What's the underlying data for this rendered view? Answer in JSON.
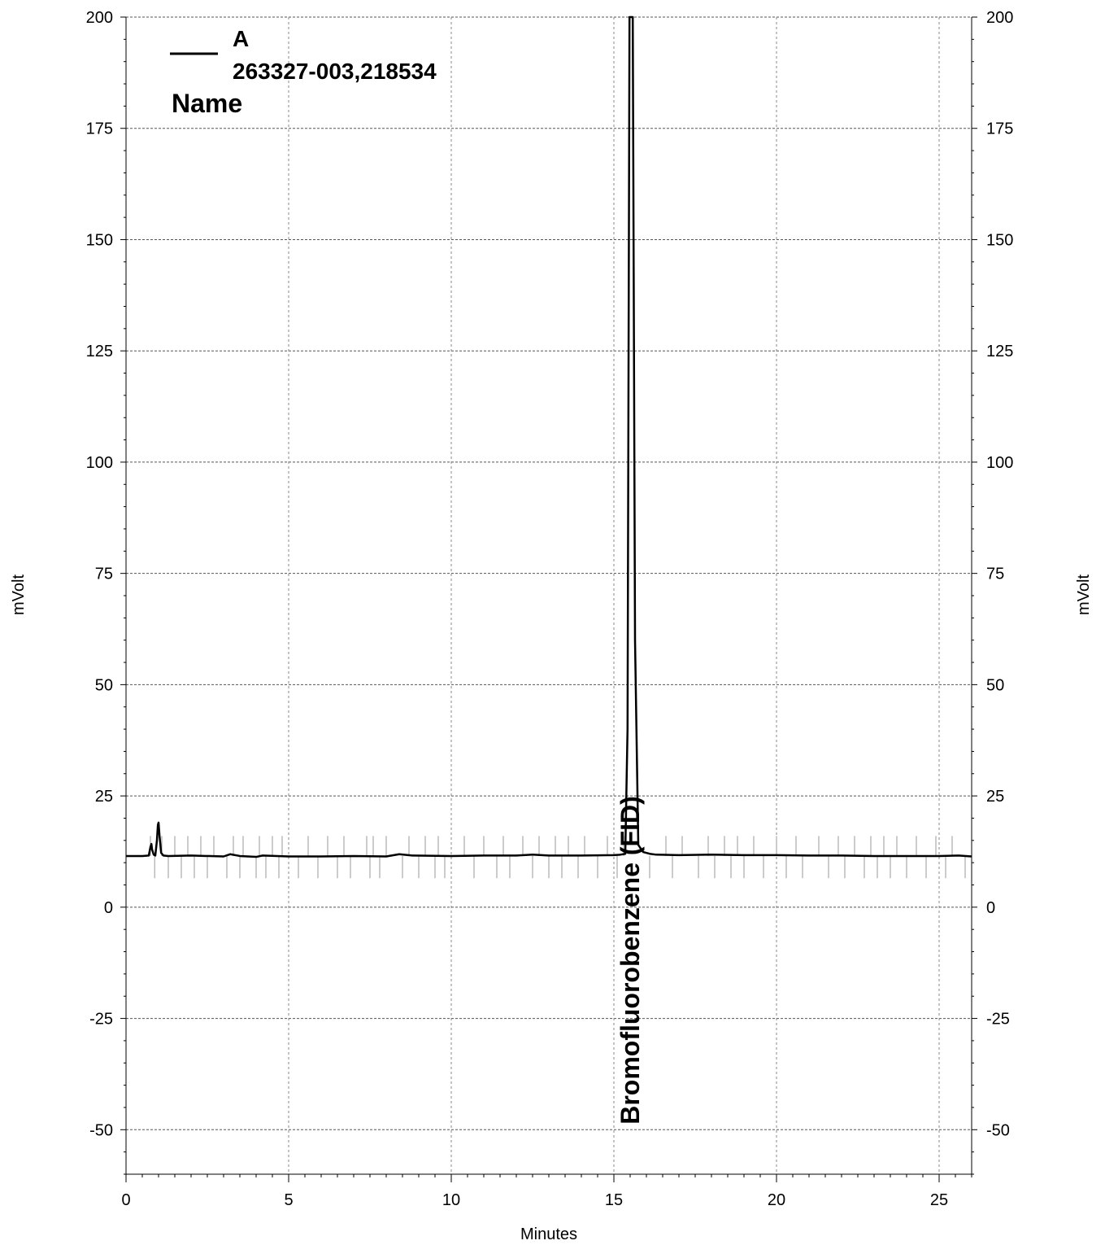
{
  "chart_data": {
    "type": "line",
    "xlabel": "Minutes",
    "ylabel_left": "mVolt",
    "ylabel_right": "mVolt",
    "xlim": [
      0,
      26
    ],
    "ylim": [
      -60,
      200
    ],
    "x_ticks": [
      0,
      5,
      10,
      15,
      20,
      25
    ],
    "y_ticks": [
      200,
      175,
      150,
      125,
      100,
      75,
      50,
      25,
      0,
      -25,
      -50
    ],
    "grid": true,
    "legend": {
      "position": "top-left",
      "series_label": "A",
      "sample_id": "263327-003,218534",
      "name_header": "Name"
    },
    "series": [
      {
        "name": "A",
        "x": [
          0.0,
          0.5,
          0.7,
          0.75,
          0.78,
          0.8,
          0.85,
          0.9,
          0.95,
          0.98,
          1.0,
          1.03,
          1.08,
          1.15,
          1.3,
          2.0,
          3.0,
          3.2,
          3.5,
          4.0,
          4.2,
          5.0,
          6.0,
          7.0,
          8.0,
          8.4,
          8.8,
          10.0,
          11.0,
          12.0,
          12.5,
          13.0,
          14.0,
          15.0,
          15.2,
          15.35,
          15.42,
          15.48,
          15.52,
          15.58,
          15.65,
          15.75,
          15.9,
          16.1,
          16.3,
          17.0,
          18.0,
          19.0,
          20.0,
          21.0,
          22.0,
          23.0,
          24.0,
          25.0,
          25.6,
          26.0
        ],
        "y": [
          11.5,
          11.5,
          11.6,
          13.5,
          14.2,
          13.0,
          11.8,
          11.6,
          15.0,
          18.5,
          19.0,
          16.0,
          12.2,
          11.6,
          11.5,
          11.6,
          11.4,
          11.9,
          11.5,
          11.3,
          11.6,
          11.4,
          11.4,
          11.5,
          11.4,
          11.9,
          11.6,
          11.5,
          11.6,
          11.6,
          11.8,
          11.6,
          11.6,
          11.7,
          11.8,
          12.0,
          40.0,
          200.0,
          200.0,
          200.0,
          60.0,
          14.0,
          12.4,
          12.0,
          11.8,
          11.7,
          11.8,
          11.7,
          11.7,
          11.6,
          11.6,
          11.5,
          11.5,
          11.5,
          11.6,
          11.4
        ]
      }
    ],
    "event_markers_minutes": [
      0.75,
      0.88,
      1.1,
      1.3,
      1.5,
      1.7,
      1.9,
      2.1,
      2.3,
      2.5,
      2.7,
      3.1,
      3.3,
      3.5,
      3.6,
      4.0,
      4.1,
      4.3,
      4.5,
      4.7,
      4.8,
      5.3,
      5.6,
      5.9,
      6.2,
      6.5,
      6.7,
      6.9,
      7.4,
      7.5,
      7.6,
      7.8,
      8.0,
      8.5,
      8.7,
      9.0,
      9.2,
      9.5,
      9.6,
      9.8,
      10.4,
      10.7,
      11.0,
      11.4,
      11.6,
      11.8,
      12.2,
      12.5,
      12.7,
      13.0,
      13.2,
      13.4,
      13.6,
      13.9,
      14.1,
      14.5,
      14.8,
      15.1,
      15.3,
      16.1,
      16.6,
      16.8,
      17.1,
      17.6,
      17.9,
      18.1,
      18.4,
      18.6,
      18.8,
      19.0,
      19.3,
      19.6,
      20.0,
      20.3,
      20.6,
      20.8,
      21.3,
      21.6,
      21.9,
      22.1,
      22.4,
      22.7,
      22.9,
      23.1,
      23.3,
      23.5,
      23.7,
      24.0,
      24.3,
      24.6,
      24.9,
      25.2,
      25.4,
      25.8
    ],
    "annotations": [
      {
        "text": "Bromofluorobenzene (FID)",
        "x": 15.5
      }
    ]
  }
}
